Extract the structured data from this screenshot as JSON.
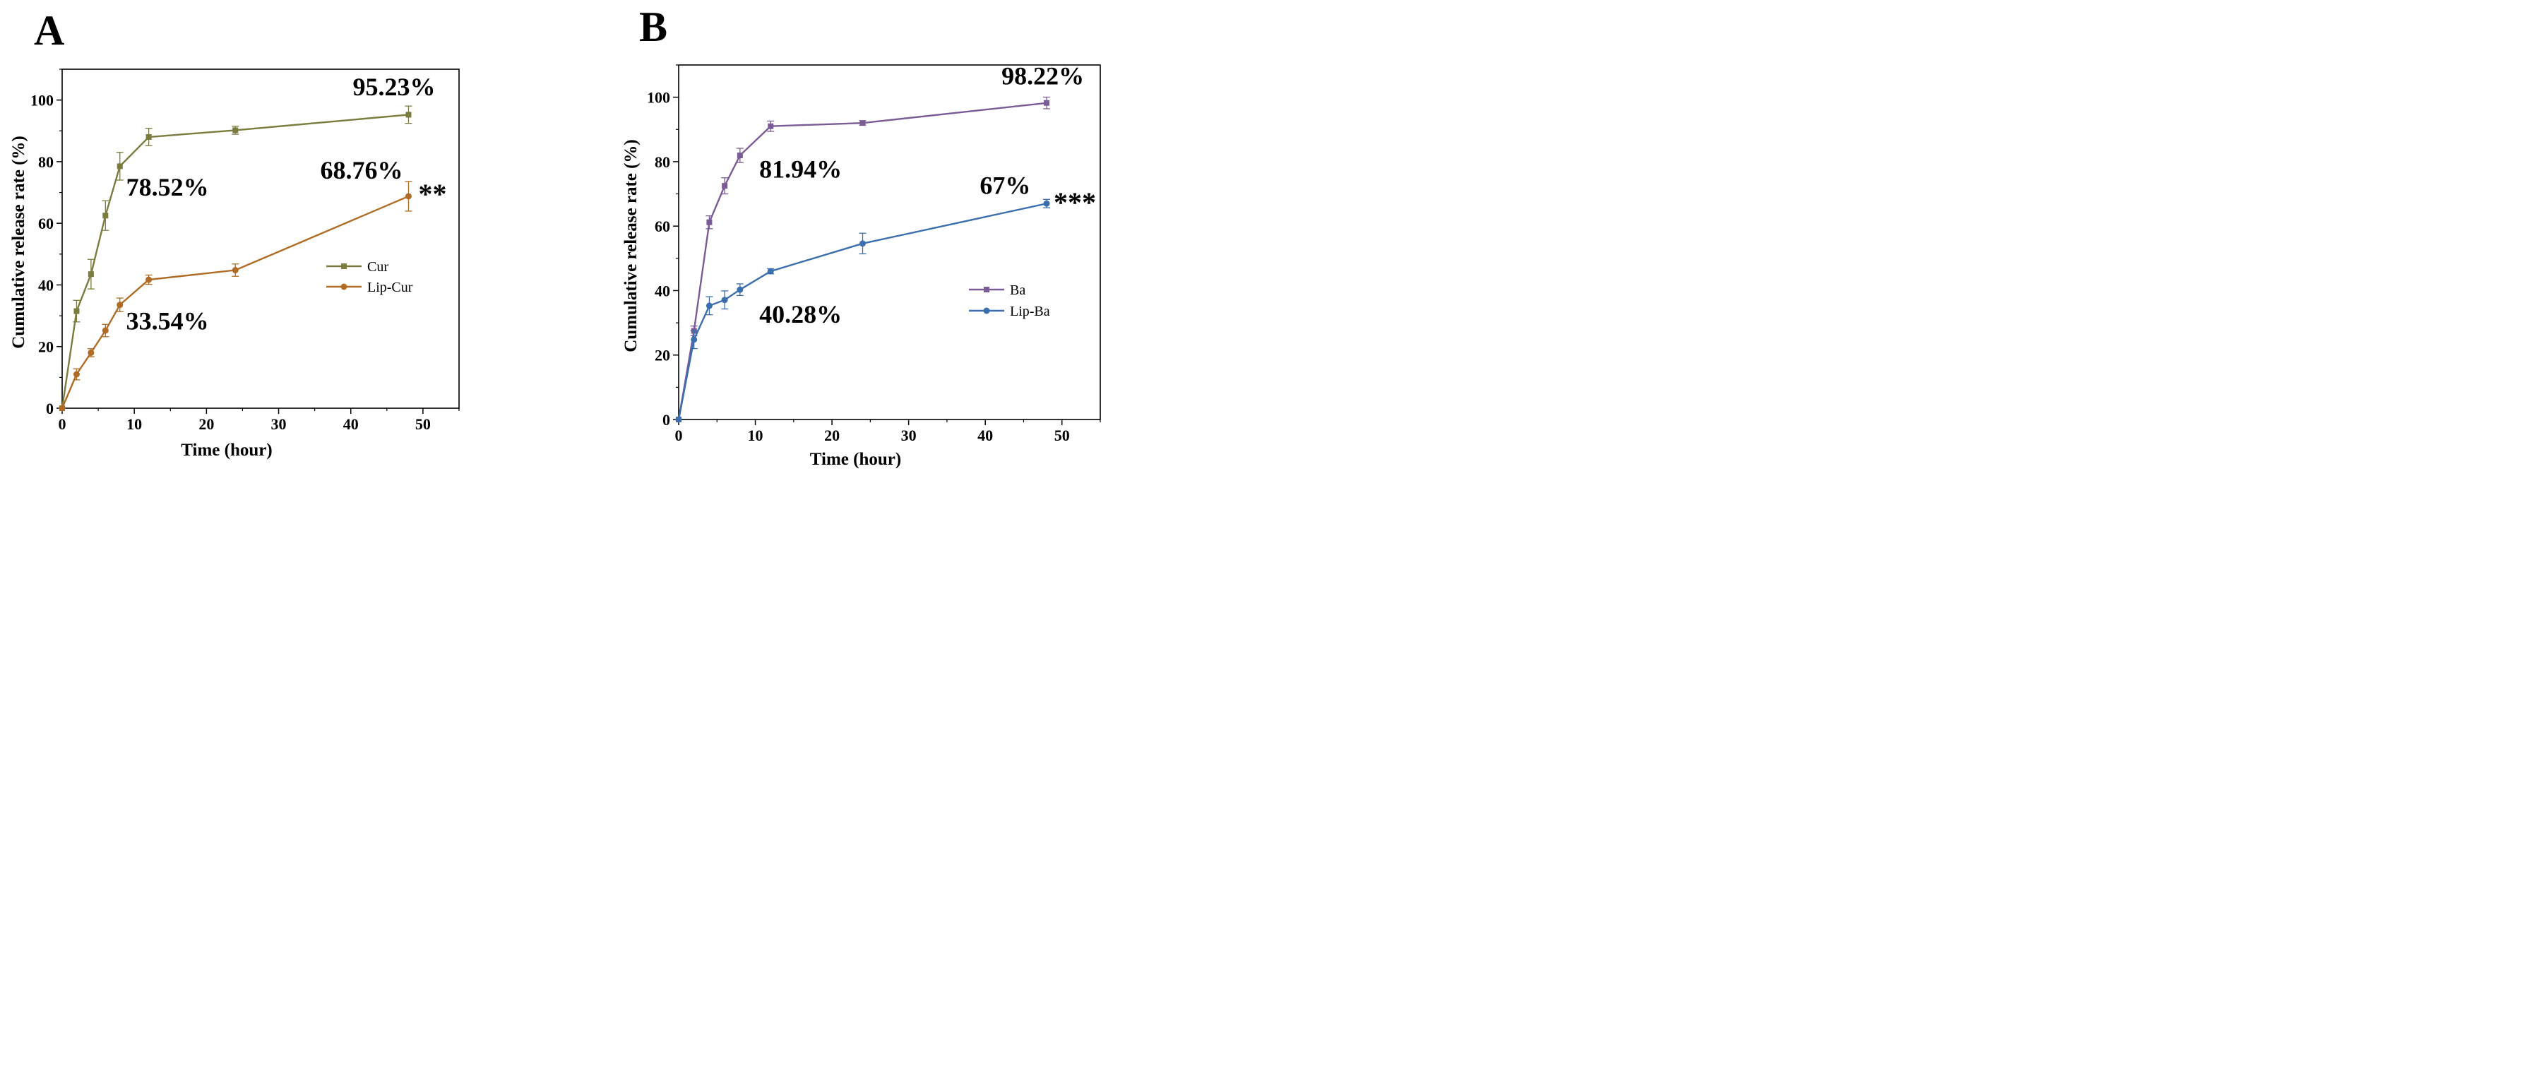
{
  "chart_data": [
    {
      "panel": "A",
      "type": "line",
      "xlabel": "Time (hour)",
      "ylabel": "Cumulative release rate (%)",
      "xlim": [
        0,
        55
      ],
      "ylim": [
        0,
        110
      ],
      "xticks": [
        0,
        10,
        20,
        30,
        40,
        50
      ],
      "yticks": [
        0,
        20,
        40,
        60,
        80,
        100
      ],
      "x": [
        0,
        2,
        4,
        6,
        8,
        12,
        24,
        48
      ],
      "series": [
        {
          "name": "Cur",
          "color": "#7b7b3e",
          "marker": "square",
          "values": [
            0,
            31.5,
            43.5,
            62.5,
            78.52,
            88,
            90.2,
            95.23
          ],
          "errors": [
            0,
            3.5,
            4.8,
            4.8,
            4.5,
            2.8,
            1.3,
            2.8
          ]
        },
        {
          "name": "Lip-Cur",
          "color": "#b06c24",
          "marker": "circle",
          "values": [
            0,
            11,
            18,
            25.2,
            33.54,
            41.7,
            44.8,
            68.76
          ],
          "errors": [
            0,
            1.8,
            1.3,
            2.0,
            2.2,
            1.5,
            2.0,
            4.8
          ]
        }
      ],
      "annotations": [
        {
          "text": "95.23%",
          "x": 46,
          "y": 101.5
        },
        {
          "text": "78.52%",
          "x": 14.6,
          "y": 69
        },
        {
          "text": "68.76%",
          "x": 41.5,
          "y": 74.5
        },
        {
          "text": "33.54%",
          "x": 14.6,
          "y": 25.5
        }
      ],
      "significance": "**",
      "legend_position": "center-right"
    },
    {
      "panel": "B",
      "type": "line",
      "xlabel": "Time (hour)",
      "ylabel": "Cumulative release rate (%)",
      "xlim": [
        0,
        55
      ],
      "ylim": [
        0,
        110
      ],
      "xticks": [
        0,
        10,
        20,
        30,
        40,
        50
      ],
      "yticks": [
        0,
        20,
        40,
        60,
        80,
        100
      ],
      "x": [
        0,
        2,
        4,
        6,
        8,
        12,
        24,
        48
      ],
      "series": [
        {
          "name": "Ba",
          "color": "#7b5b95",
          "marker": "square",
          "values": [
            0,
            27.5,
            61.2,
            72.5,
            81.94,
            91,
            92,
            98.22
          ],
          "errors": [
            0,
            1.5,
            2.0,
            2.5,
            2.2,
            1.6,
            0.7,
            1.8
          ]
        },
        {
          "name": "Lip-Ba",
          "color": "#3a6ead",
          "marker": "circle",
          "values": [
            0,
            24.8,
            35.3,
            37.1,
            40.28,
            46,
            54.6,
            67
          ],
          "errors": [
            0,
            2.8,
            2.8,
            2.8,
            1.8,
            0.8,
            3.2,
            1.3
          ]
        }
      ],
      "annotations": [
        {
          "text": "98.22%",
          "x": 47.5,
          "y": 104
        },
        {
          "text": "81.94%",
          "x": 15.9,
          "y": 75
        },
        {
          "text": "67%",
          "x": 42.6,
          "y": 70
        },
        {
          "text": "40.28%",
          "x": 15.9,
          "y": 30
        }
      ],
      "significance": "***",
      "legend_position": "center-right"
    }
  ]
}
